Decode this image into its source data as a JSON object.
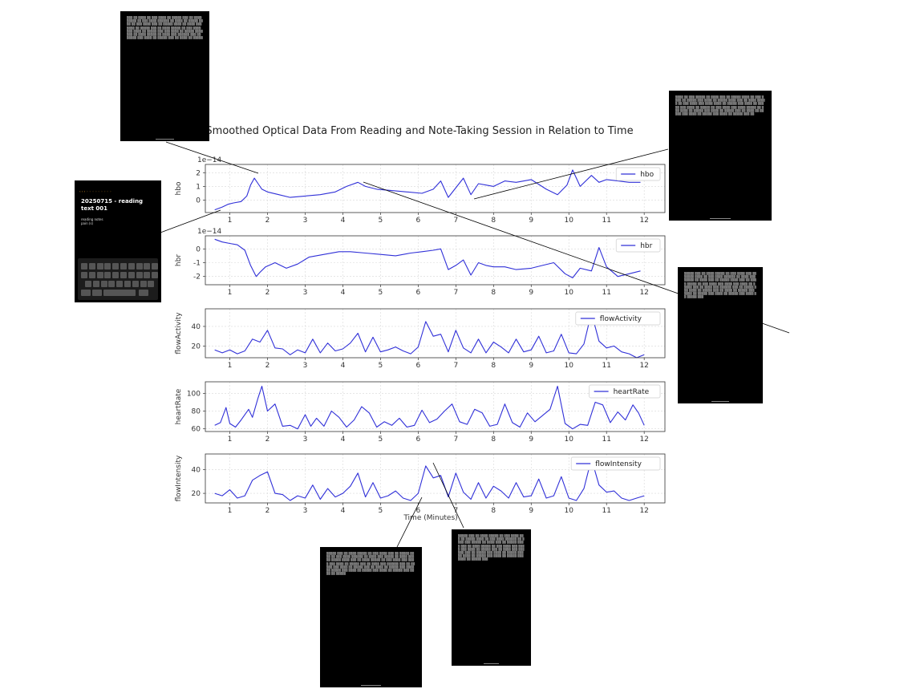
{
  "figure": {
    "title": "Smoothed Optical Data From Reading and Note-Taking Session in Relation to Time",
    "xlabel": "Time (Minutes)"
  },
  "colors": {
    "line": "#3030d8",
    "axis": "#333333",
    "grid": "#d8d8d8",
    "thumb_bg": "#000000"
  },
  "phone_note": {
    "title": "20250715 - reading text 001",
    "body_lines": [
      "reading notes",
      "pain (s)"
    ]
  },
  "chart_data": [
    {
      "type": "line",
      "ylabel": "hbo",
      "scale_label": "1e−14",
      "xlim": [
        0.35,
        12.55
      ],
      "ylim": [
        -0.9,
        2.6
      ],
      "yticks": [
        0,
        1,
        2
      ],
      "xticks": [
        1,
        2,
        3,
        4,
        5,
        6,
        7,
        8,
        9,
        10,
        11,
        12
      ],
      "series": [
        {
          "name": "hbo",
          "x": [
            0.6,
            0.8,
            0.95,
            1.1,
            1.3,
            1.45,
            1.55,
            1.65,
            1.75,
            1.85,
            2.0,
            2.3,
            2.6,
            3.0,
            3.4,
            3.8,
            4.1,
            4.4,
            4.6,
            4.9,
            5.3,
            5.7,
            6.1,
            6.4,
            6.6,
            6.8,
            7.0,
            7.2,
            7.4,
            7.6,
            7.8,
            8.0,
            8.3,
            8.6,
            9.0,
            9.4,
            9.7,
            9.95,
            10.1,
            10.3,
            10.6,
            10.8,
            11.0,
            11.3,
            11.6,
            11.9
          ],
          "y": [
            -0.7,
            -0.5,
            -0.3,
            -0.2,
            -0.1,
            0.3,
            1.1,
            1.6,
            1.2,
            0.8,
            0.6,
            0.4,
            0.2,
            0.3,
            0.4,
            0.6,
            1.0,
            1.3,
            1.0,
            0.8,
            0.7,
            0.6,
            0.5,
            0.8,
            1.4,
            0.2,
            0.9,
            1.6,
            0.4,
            1.2,
            1.1,
            1.0,
            1.4,
            1.3,
            1.5,
            0.8,
            0.4,
            1.1,
            2.2,
            1.0,
            1.8,
            1.3,
            1.5,
            1.4,
            1.3,
            1.3
          ]
        }
      ]
    },
    {
      "type": "line",
      "ylabel": "hbr",
      "scale_label": "1e−14",
      "xlim": [
        0.35,
        12.55
      ],
      "ylim": [
        -2.6,
        0.95
      ],
      "yticks": [
        -2,
        -1,
        0
      ],
      "xticks": [
        1,
        2,
        3,
        4,
        5,
        6,
        7,
        8,
        9,
        10,
        11,
        12
      ],
      "series": [
        {
          "name": "hbr",
          "x": [
            0.6,
            0.8,
            1.0,
            1.2,
            1.4,
            1.55,
            1.7,
            1.8,
            1.95,
            2.2,
            2.5,
            2.8,
            3.1,
            3.5,
            3.9,
            4.2,
            4.6,
            5.0,
            5.4,
            5.8,
            6.1,
            6.4,
            6.6,
            6.8,
            7.0,
            7.2,
            7.4,
            7.6,
            7.8,
            8.0,
            8.3,
            8.6,
            9.0,
            9.3,
            9.6,
            9.9,
            10.1,
            10.3,
            10.6,
            10.8,
            11.0,
            11.3,
            11.6,
            11.9
          ],
          "y": [
            0.7,
            0.5,
            0.4,
            0.3,
            -0.1,
            -1.2,
            -2.0,
            -1.7,
            -1.3,
            -1.0,
            -1.4,
            -1.1,
            -0.6,
            -0.4,
            -0.2,
            -0.2,
            -0.3,
            -0.4,
            -0.5,
            -0.3,
            -0.2,
            -0.1,
            0.0,
            -1.5,
            -1.2,
            -0.8,
            -1.9,
            -1.0,
            -1.2,
            -1.3,
            -1.3,
            -1.5,
            -1.4,
            -1.2,
            -1.0,
            -1.8,
            -2.1,
            -1.4,
            -1.6,
            0.1,
            -1.3,
            -2.0,
            -1.8,
            -1.6
          ]
        }
      ]
    },
    {
      "type": "line",
      "ylabel": "flowActivity",
      "xlim": [
        0.35,
        12.55
      ],
      "ylim": [
        8,
        58
      ],
      "yticks": [
        20,
        40
      ],
      "xticks": [
        1,
        2,
        3,
        4,
        5,
        6,
        7,
        8,
        9,
        10,
        11,
        12
      ],
      "series": [
        {
          "name": "flowActivity",
          "x": [
            0.6,
            0.8,
            1.0,
            1.2,
            1.4,
            1.6,
            1.8,
            2.0,
            2.2,
            2.4,
            2.6,
            2.8,
            3.0,
            3.2,
            3.4,
            3.6,
            3.8,
            4.0,
            4.2,
            4.4,
            4.6,
            4.8,
            5.0,
            5.2,
            5.4,
            5.6,
            5.8,
            6.0,
            6.2,
            6.4,
            6.6,
            6.8,
            7.0,
            7.2,
            7.4,
            7.6,
            7.8,
            8.0,
            8.2,
            8.4,
            8.6,
            8.8,
            9.0,
            9.2,
            9.4,
            9.6,
            9.8,
            10.0,
            10.2,
            10.4,
            10.6,
            10.8,
            11.0,
            11.2,
            11.4,
            11.6,
            11.8,
            12.0
          ],
          "y": [
            16,
            13,
            16,
            12,
            15,
            27,
            24,
            36,
            18,
            17,
            11,
            16,
            13,
            27,
            13,
            23,
            15,
            17,
            23,
            33,
            14,
            29,
            14,
            16,
            19,
            15,
            12,
            19,
            45,
            30,
            32,
            14,
            36,
            18,
            13,
            27,
            13,
            24,
            19,
            13,
            27,
            14,
            16,
            30,
            13,
            15,
            32,
            13,
            12,
            22,
            54,
            25,
            18,
            20,
            14,
            12,
            8,
            11
          ]
        }
      ]
    },
    {
      "type": "line",
      "ylabel": "heartRate",
      "xlim": [
        0.35,
        12.55
      ],
      "ylim": [
        57,
        113
      ],
      "yticks": [
        60,
        80,
        100
      ],
      "xticks": [
        1,
        2,
        3,
        4,
        5,
        6,
        7,
        8,
        9,
        10,
        11,
        12
      ],
      "series": [
        {
          "name": "heartRate",
          "x": [
            0.6,
            0.75,
            0.9,
            1.0,
            1.15,
            1.3,
            1.5,
            1.6,
            1.75,
            1.85,
            2.0,
            2.2,
            2.4,
            2.6,
            2.8,
            3.0,
            3.15,
            3.3,
            3.5,
            3.7,
            3.9,
            4.1,
            4.3,
            4.5,
            4.7,
            4.9,
            5.1,
            5.3,
            5.5,
            5.7,
            5.9,
            6.1,
            6.3,
            6.5,
            6.7,
            6.9,
            7.1,
            7.3,
            7.5,
            7.7,
            7.9,
            8.1,
            8.3,
            8.5,
            8.7,
            8.9,
            9.1,
            9.3,
            9.5,
            9.7,
            9.9,
            10.1,
            10.3,
            10.5,
            10.7,
            10.9,
            11.1,
            11.3,
            11.5,
            11.7,
            11.85,
            12.0
          ],
          "y": [
            64,
            67,
            84,
            66,
            62,
            70,
            82,
            73,
            95,
            108,
            80,
            88,
            63,
            64,
            60,
            76,
            63,
            72,
            63,
            80,
            73,
            62,
            70,
            85,
            78,
            62,
            68,
            64,
            72,
            62,
            64,
            81,
            67,
            71,
            80,
            88,
            68,
            65,
            82,
            78,
            63,
            65,
            88,
            67,
            62,
            78,
            68,
            75,
            82,
            108,
            66,
            60,
            65,
            64,
            90,
            87,
            67,
            79,
            70,
            87,
            78,
            64
          ]
        }
      ]
    },
    {
      "type": "line",
      "ylabel": "flowIntensity",
      "xlim": [
        0.35,
        12.55
      ],
      "ylim": [
        12,
        53
      ],
      "yticks": [
        20,
        40
      ],
      "xticks": [
        1,
        2,
        3,
        4,
        5,
        6,
        7,
        8,
        9,
        10,
        11,
        12
      ],
      "xlabel": "Time (Minutes)",
      "series": [
        {
          "name": "flowIntensity",
          "x": [
            0.6,
            0.8,
            1.0,
            1.2,
            1.4,
            1.6,
            1.8,
            2.0,
            2.2,
            2.4,
            2.6,
            2.8,
            3.0,
            3.2,
            3.4,
            3.6,
            3.8,
            4.0,
            4.2,
            4.4,
            4.6,
            4.8,
            5.0,
            5.2,
            5.4,
            5.6,
            5.8,
            6.0,
            6.2,
            6.4,
            6.6,
            6.8,
            7.0,
            7.2,
            7.4,
            7.6,
            7.8,
            8.0,
            8.2,
            8.4,
            8.6,
            8.8,
            9.0,
            9.2,
            9.4,
            9.6,
            9.8,
            10.0,
            10.2,
            10.4,
            10.6,
            10.8,
            11.0,
            11.2,
            11.4,
            11.6,
            11.8,
            12.0
          ],
          "y": [
            20,
            18,
            23,
            16,
            18,
            31,
            35,
            38,
            20,
            19,
            14,
            18,
            16,
            27,
            15,
            24,
            17,
            20,
            26,
            37,
            17,
            29,
            16,
            18,
            22,
            16,
            14,
            20,
            43,
            33,
            35,
            17,
            37,
            21,
            15,
            29,
            16,
            26,
            22,
            16,
            29,
            17,
            18,
            32,
            16,
            18,
            34,
            16,
            14,
            24,
            49,
            27,
            21,
            22,
            16,
            14,
            16,
            18
          ]
        }
      ]
    }
  ]
}
